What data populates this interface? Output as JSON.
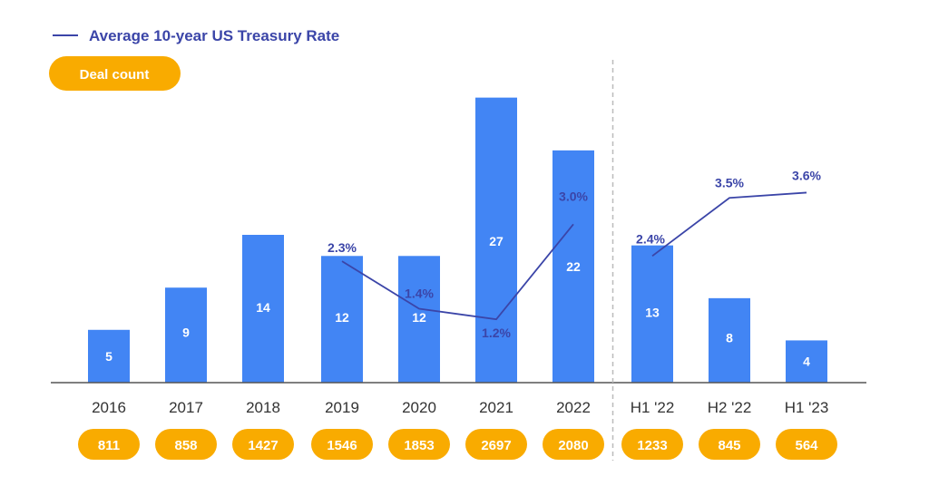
{
  "chart_data": {
    "type": "bar",
    "categories": [
      "2016",
      "2017",
      "2018",
      "2019",
      "2020",
      "2021",
      "2022",
      "H1 '22",
      "H2 '22",
      "H1 '23"
    ],
    "values": [
      5,
      9,
      14,
      12,
      12,
      27,
      22,
      13,
      8,
      4
    ],
    "deal_counts": [
      "811",
      "858",
      "1427",
      "1546",
      "1853",
      "2697",
      "2080",
      "1233",
      "845",
      "564"
    ],
    "deal_count_label": "Deal count",
    "line_series": [
      {
        "name": "Average 10-year US Treasury Rate",
        "segments": [
          [
            {
              "category": "2019",
              "value": 2.3,
              "label": "2.3%"
            },
            {
              "category": "2020",
              "value": 1.4,
              "label": "1.4%"
            },
            {
              "category": "2021",
              "value": 1.2,
              "label": "1.2%"
            },
            {
              "category": "2022",
              "value": 3.0,
              "label": "3.0%"
            }
          ],
          [
            {
              "category": "H1 '22",
              "value": 2.4,
              "label": "2.4%"
            },
            {
              "category": "H2 '22",
              "value": 3.5,
              "label": "3.5%"
            },
            {
              "category": "H1 '23",
              "value": 3.6,
              "label": "3.6%"
            }
          ]
        ]
      }
    ],
    "ylim": [
      0,
      28
    ],
    "line_ylim": [
      0,
      5.6
    ],
    "divider_after": "2022",
    "legend_position": "top-left",
    "grid": false,
    "colors": {
      "bar": "#4285f4",
      "line": "#3b45a8",
      "badge": "#f9ab00",
      "axis": "#555555",
      "divider": "#bbbbbb"
    }
  }
}
